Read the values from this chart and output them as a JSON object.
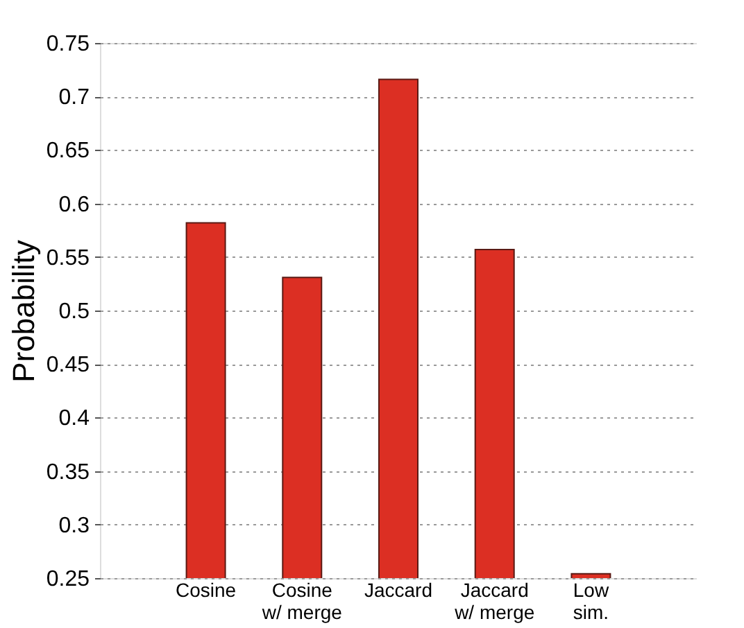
{
  "chart_data": {
    "type": "bar",
    "ylabel": "Probability",
    "categories": [
      "Cosine",
      "Cosine\nw/ merge",
      "Jaccard",
      "Jaccard\nw/ merge",
      "Low\nsim."
    ],
    "values": [
      0.582,
      0.531,
      0.716,
      0.557,
      0.254
    ],
    "color": "#dc2f23",
    "ylim": [
      0.25,
      0.75
    ],
    "yticks": [
      0.25,
      0.3,
      0.35,
      0.4,
      0.45,
      0.5,
      0.55,
      0.6,
      0.65,
      0.7,
      0.75
    ],
    "grid": "y"
  }
}
